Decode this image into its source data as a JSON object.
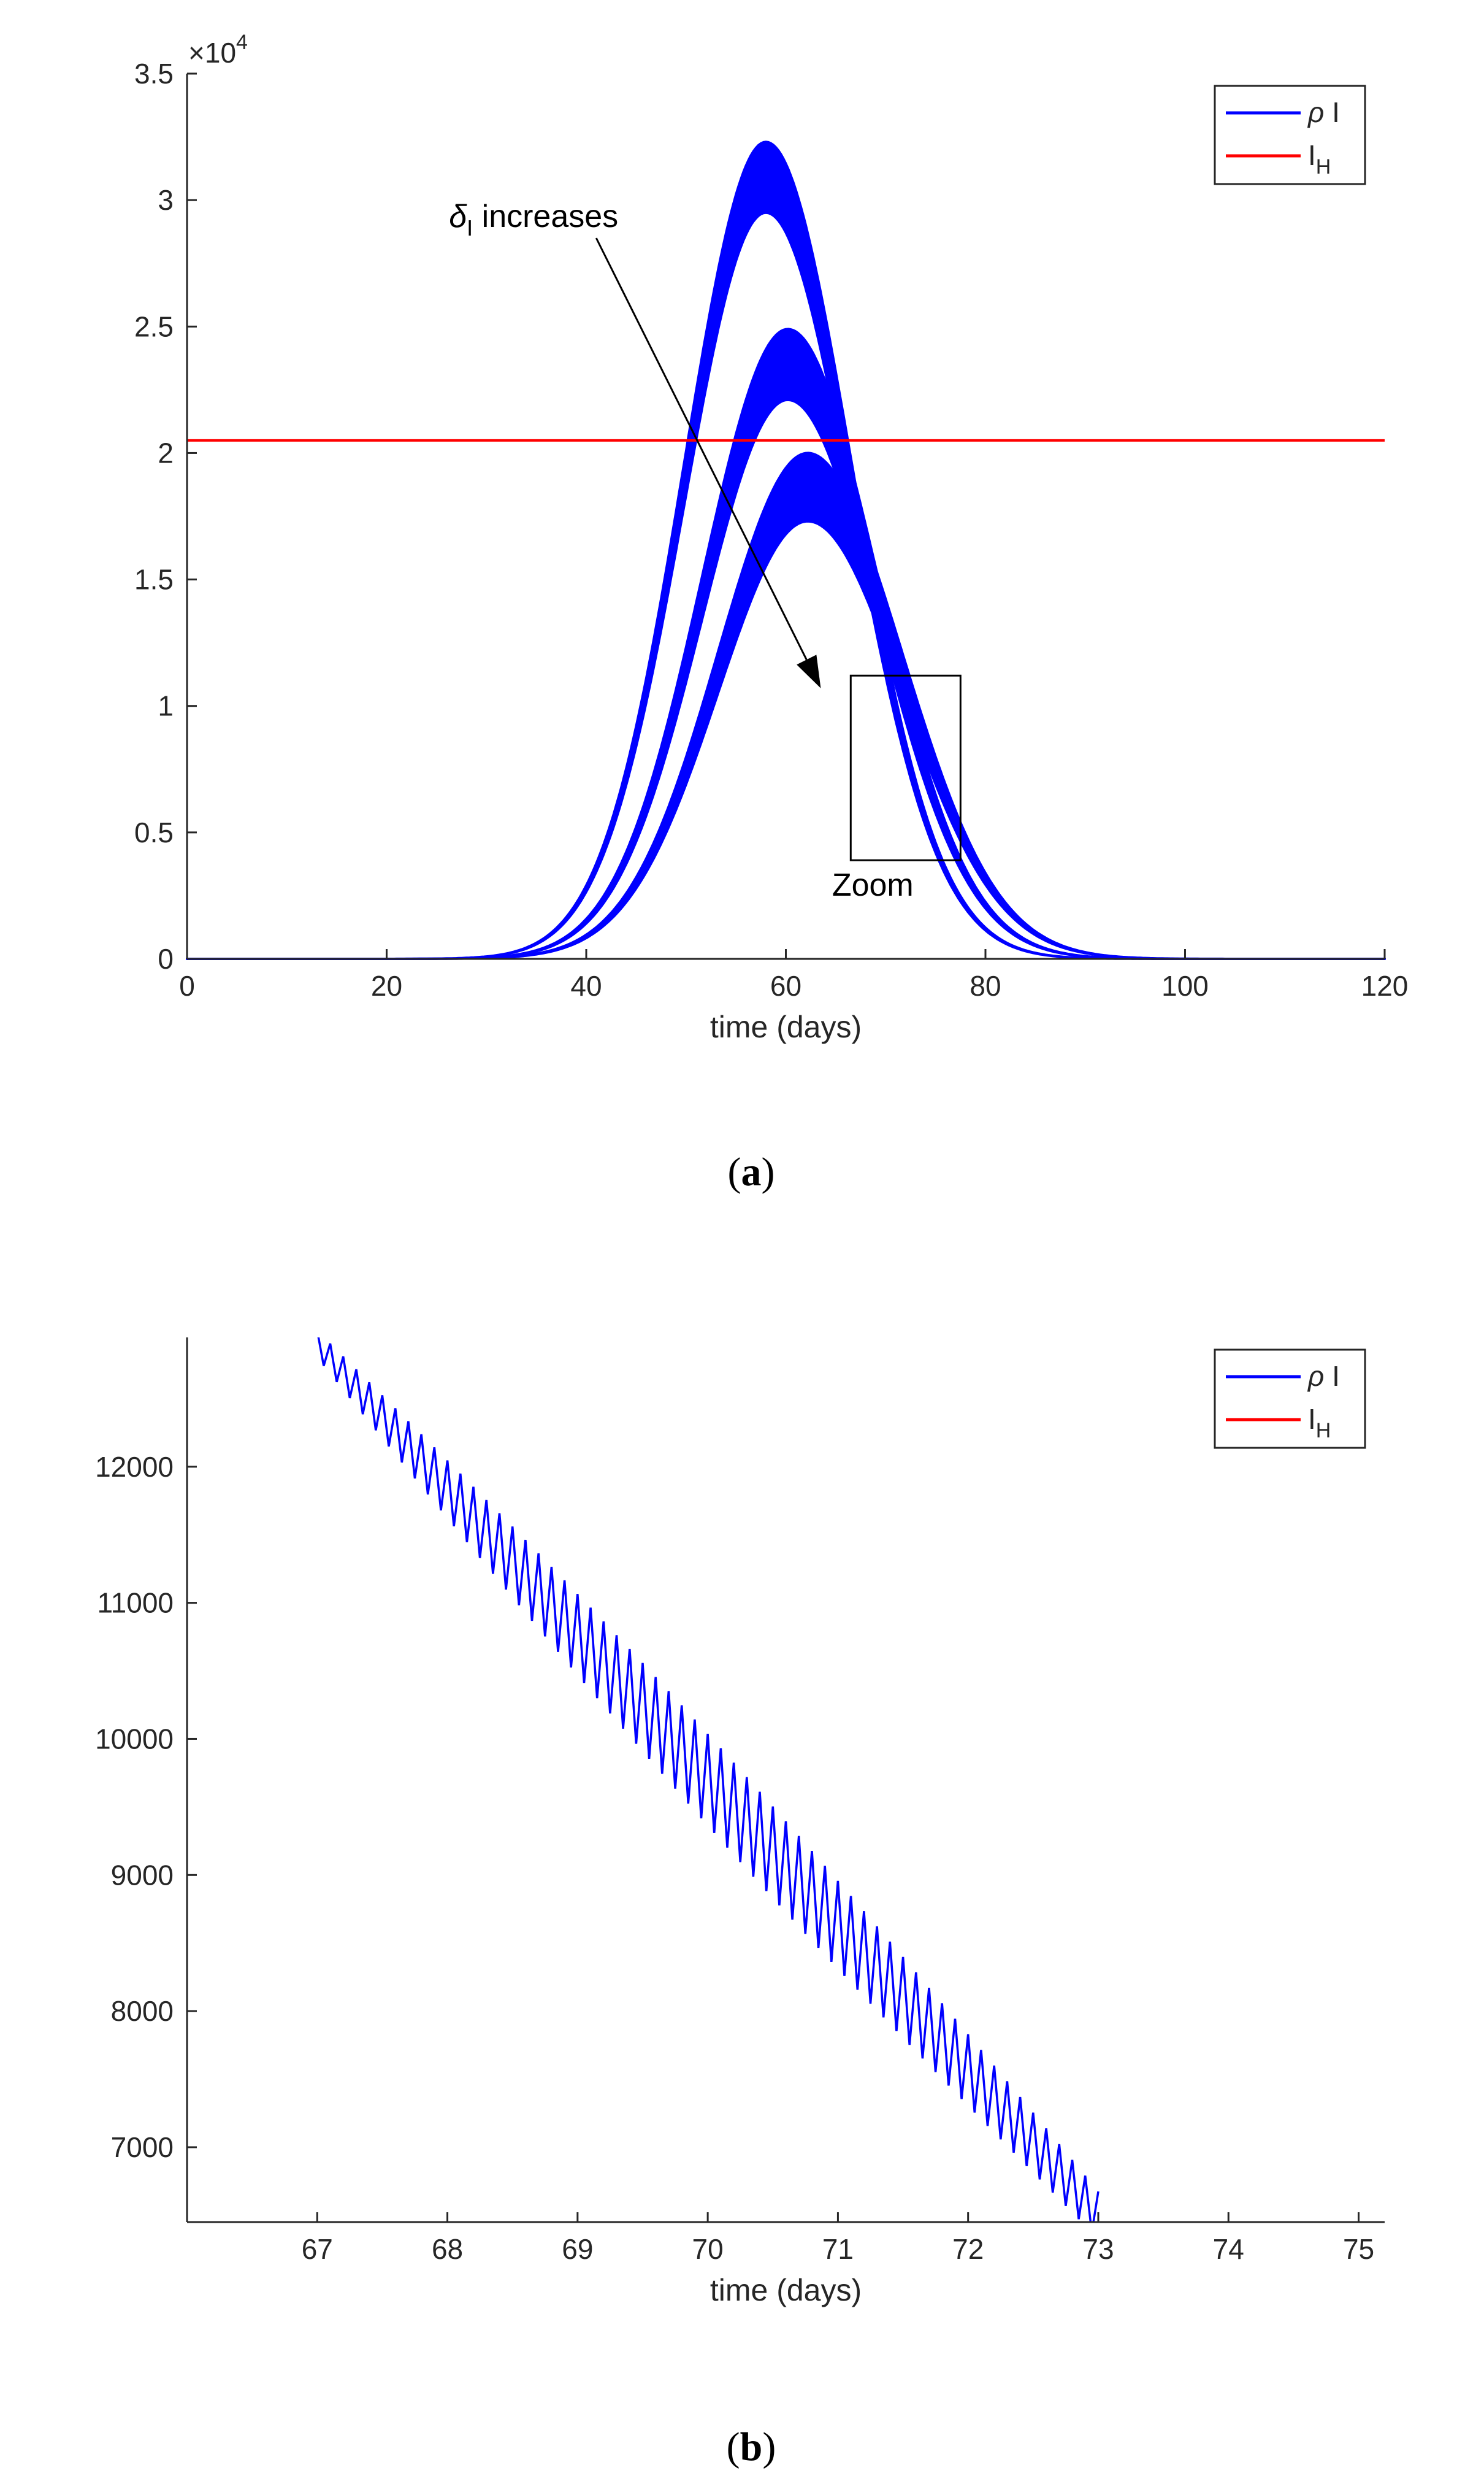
{
  "chart_data": [
    {
      "type": "line",
      "panel": "a",
      "caption": "a",
      "xlabel": "time (days)",
      "ylabel": "",
      "xlim": [
        0,
        120
      ],
      "ylim": [
        0,
        3.5
      ],
      "y_multiplier": "×10",
      "y_exponent": "4",
      "xticks": [
        "0",
        "20",
        "40",
        "60",
        "80",
        "100",
        "120"
      ],
      "yticks": [
        "0",
        "0.5",
        "1",
        "1.5",
        "2",
        "2.5",
        "3",
        "3.5"
      ],
      "series": [
        {
          "name": "ρ I",
          "color": "#0000ff",
          "description": "three oscillating bands, peaks near t=58, 60, 62",
          "bands": [
            {
              "peak_time": 58,
              "upper_peak": 3.23,
              "lower_peak": 2.95,
              "width": 8.2
            },
            {
              "peak_time": 60.2,
              "upper_peak": 2.49,
              "lower_peak": 2.21,
              "width": 8.6
            },
            {
              "peak_time": 62.2,
              "upper_peak": 2.0,
              "lower_peak": 1.73,
              "width": 9.0
            }
          ]
        },
        {
          "name": "I_H",
          "color": "#ff0000",
          "value": 2.05
        }
      ],
      "legend": [
        {
          "label_main": "ρ I",
          "label_sub": "",
          "color": "#0000ff"
        },
        {
          "label_main": "I",
          "label_sub": "H",
          "color": "#ff0000"
        }
      ],
      "legend_position": "top-right",
      "annotations": {
        "arrow_label_main": "δ",
        "arrow_label_sub": "I",
        "arrow_label_rest": " increases",
        "arrow_from": [
          41,
          2.85
        ],
        "arrow_to": [
          63.5,
          1.07
        ],
        "zoom_label": "Zoom",
        "zoom_box": {
          "x0": 66.5,
          "x1": 77.5,
          "y0": 0.39,
          "y1": 1.12
        }
      }
    },
    {
      "type": "line",
      "panel": "b",
      "caption": "b",
      "xlabel": "time (days)",
      "ylabel": "",
      "xlim": [
        66,
        75.2
      ],
      "ylim": [
        6450,
        12950
      ],
      "xticks": [
        "67",
        "68",
        "69",
        "70",
        "71",
        "72",
        "73",
        "74",
        "75"
      ],
      "yticks": [
        "7000",
        "8000",
        "9000",
        "10000",
        "11000",
        "12000"
      ],
      "series": [
        {
          "name": "ρ I",
          "color": "#0000ff",
          "description": "sawtooth oscillation decreasing from ~12900 at t=67 to ~6450 at t=73",
          "start": [
            67.0,
            12900
          ],
          "end": [
            73.0,
            6500
          ],
          "period": 0.1,
          "amplitude_start": 200,
          "amplitude_mid": 600
        },
        {
          "name": "I_H",
          "color": "#ff0000",
          "note": "out of displayed range"
        }
      ],
      "legend": [
        {
          "label_main": "ρ I",
          "label_sub": "",
          "color": "#0000ff"
        },
        {
          "label_main": "I",
          "label_sub": "H",
          "color": "#ff0000"
        }
      ],
      "legend_position": "top-right"
    }
  ]
}
